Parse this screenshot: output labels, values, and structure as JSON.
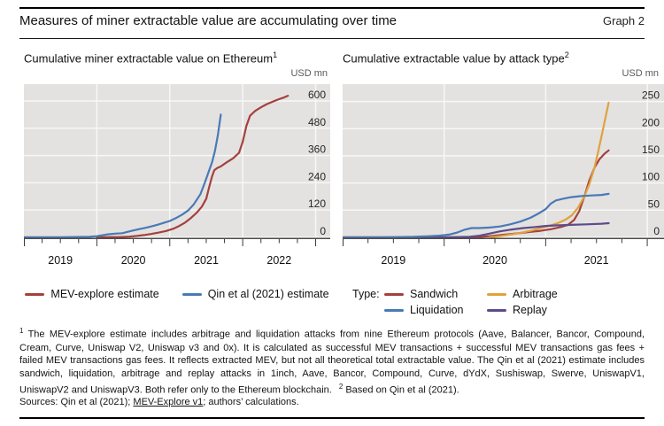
{
  "header": {
    "title": "Measures of miner extractable value are accumulating over time",
    "graph_label": "Graph 2"
  },
  "style": {
    "plot_bg": "#e3e2e1",
    "gridline": "#f7f7f6",
    "axis_line": "#4d4d4d",
    "tick": "#3a3a3a",
    "axis_label": "#262626",
    "year_label": "#111111"
  },
  "chart_data": [
    {
      "type": "line",
      "title": "Cumulative miner extractable value on Ethereum",
      "title_sup": "1",
      "unit": "USD mn",
      "grid": true,
      "legend_position": "bottom",
      "xlim": [
        2019.0,
        2023.2
      ],
      "ylim": [
        -8,
        674
      ],
      "y_ticks": [
        0,
        120,
        240,
        360,
        480,
        600
      ],
      "x_major_ticks": [
        2019,
        2020,
        2021,
        2022,
        2023
      ],
      "x_labels": [
        "2019",
        "2020",
        "2021",
        "2022"
      ],
      "x_label_centers": [
        2019.5,
        2020.5,
        2021.5,
        2022.5
      ],
      "series": [
        {
          "name": "MEV-explore estimate",
          "color": "#a5403c",
          "x": [
            2020.0,
            2020.3,
            2020.45,
            2020.55,
            2020.65,
            2020.75,
            2020.85,
            2020.95,
            2021.05,
            2021.13,
            2021.21,
            2021.29,
            2021.37,
            2021.44,
            2021.5,
            2021.54,
            2021.58,
            2021.61,
            2021.65,
            2021.7,
            2021.78,
            2021.87,
            2021.95,
            2022.0,
            2022.05,
            2022.1,
            2022.17,
            2022.25,
            2022.33,
            2022.42,
            2022.5,
            2022.57,
            2022.62
          ],
          "y": [
            0,
            1,
            3,
            6,
            10,
            15,
            21,
            28,
            38,
            50,
            65,
            85,
            108,
            135,
            170,
            220,
            268,
            295,
            305,
            312,
            330,
            348,
            372,
            420,
            490,
            535,
            556,
            572,
            586,
            598,
            608,
            616,
            623
          ]
        },
        {
          "name": "Qin et al (2021) estimate",
          "color": "#4a79b5",
          "x": [
            2019.0,
            2019.5,
            2019.9,
            2020.0,
            2020.08,
            2020.15,
            2020.25,
            2020.35,
            2020.42,
            2020.5,
            2020.58,
            2020.67,
            2020.75,
            2020.83,
            2020.91,
            2021.0,
            2021.08,
            2021.17,
            2021.25,
            2021.33,
            2021.42,
            2021.48,
            2021.53,
            2021.58,
            2021.62,
            2021.66,
            2021.7
          ],
          "y": [
            0,
            0,
            2,
            5,
            9,
            13,
            16,
            18,
            24,
            30,
            36,
            42,
            48,
            55,
            63,
            72,
            84,
            100,
            118,
            145,
            190,
            240,
            285,
            330,
            380,
            450,
            540
          ]
        }
      ]
    },
    {
      "type": "line",
      "title": "Cumulative extractable value by attack type",
      "title_sup": "2",
      "unit": "USD mn",
      "grid": true,
      "legend_position": "bottom",
      "legend_title": "Type:",
      "xlim": [
        2019.0,
        2022.165
      ],
      "ylim": [
        -3.3,
        282
      ],
      "y_ticks": [
        0,
        50,
        100,
        150,
        200,
        250
      ],
      "x_major_ticks": [
        2019,
        2020,
        2021,
        2022
      ],
      "x_labels": [
        "2019",
        "2020",
        "2021"
      ],
      "x_label_centers": [
        2019.5,
        2020.5,
        2021.5
      ],
      "series": [
        {
          "name": "Sandwich",
          "color": "#a5403c",
          "x": [
            2019.0,
            2019.5,
            2020.0,
            2020.3,
            2020.45,
            2020.55,
            2020.65,
            2020.75,
            2020.85,
            2020.95,
            2021.05,
            2021.15,
            2021.22,
            2021.28,
            2021.33,
            2021.38,
            2021.43,
            2021.48,
            2021.53,
            2021.58,
            2021.62
          ],
          "y": [
            0,
            0,
            0,
            0,
            2,
            4,
            6,
            8,
            10,
            12,
            15,
            19,
            23,
            32,
            48,
            75,
            105,
            128,
            144,
            154,
            160
          ]
        },
        {
          "name": "Arbitrage",
          "color": "#e0a23c",
          "x": [
            2020.45,
            2020.55,
            2020.65,
            2020.75,
            2020.85,
            2020.95,
            2021.05,
            2021.13,
            2021.2,
            2021.26,
            2021.32,
            2021.38,
            2021.43,
            2021.48,
            2021.52,
            2021.56,
            2021.59,
            2021.62
          ],
          "y": [
            0,
            2,
            5,
            8,
            12,
            17,
            22,
            27,
            33,
            41,
            55,
            75,
            98,
            128,
            160,
            195,
            222,
            248
          ]
        },
        {
          "name": "Replay",
          "color": "#5e4b8b",
          "x": [
            2019.0,
            2019.5,
            2020.0,
            2020.25,
            2020.35,
            2020.45,
            2020.55,
            2020.65,
            2020.78,
            2020.9,
            2021.0,
            2021.1,
            2021.25,
            2021.4,
            2021.55,
            2021.62
          ],
          "y": [
            0,
            0,
            0,
            1,
            3,
            7,
            11,
            14,
            17,
            19,
            21,
            22,
            23,
            24,
            25,
            26
          ]
        },
        {
          "name": "Liquidation",
          "color": "#4a79b5",
          "x": [
            2019.0,
            2019.4,
            2019.7,
            2019.85,
            2019.95,
            2020.05,
            2020.13,
            2020.2,
            2020.27,
            2020.35,
            2020.45,
            2020.55,
            2020.65,
            2020.75,
            2020.85,
            2020.93,
            2021.0,
            2021.05,
            2021.1,
            2021.17,
            2021.25,
            2021.35,
            2021.45,
            2021.55,
            2021.62
          ],
          "y": [
            0,
            0,
            1,
            2,
            3,
            5,
            9,
            14,
            17,
            17,
            18,
            20,
            24,
            29,
            36,
            44,
            52,
            62,
            68,
            71,
            74,
            76,
            77,
            78,
            80
          ]
        }
      ]
    }
  ],
  "footnotes": {
    "fn1_sup": "1",
    "fn1_text": "The MEV-explore estimate includes arbitrage and liquidation attacks from nine Ethereum protocols (Aave, Balancer, Bancor, Compound, Cream, Curve, Uniswap V2, Uniswap v3 and 0x). It is calculated as successful MEV transactions + successful MEV transactions gas fees + failed MEV transactions gas fees. It reflects extracted MEV, but not all theoretical total extractable value. The Qin et al (2021) estimate includes sandwich, liquidation, arbitrage and replay attacks in 1inch, Aave, Bancor, Compound, Curve, dYdX, Sushiswap, Swerve, UniswapV1, UniswapV2 and UniswapV3. Both refer only to the Ethereum blockchain.",
    "fn2_sup": "2",
    "fn2_text": "Based on Qin et al (2021)."
  },
  "sources": {
    "prefix": "Sources: Qin et al (2021); ",
    "link": "MEV-Explore v1",
    "suffix": "; authors’ calculations."
  }
}
